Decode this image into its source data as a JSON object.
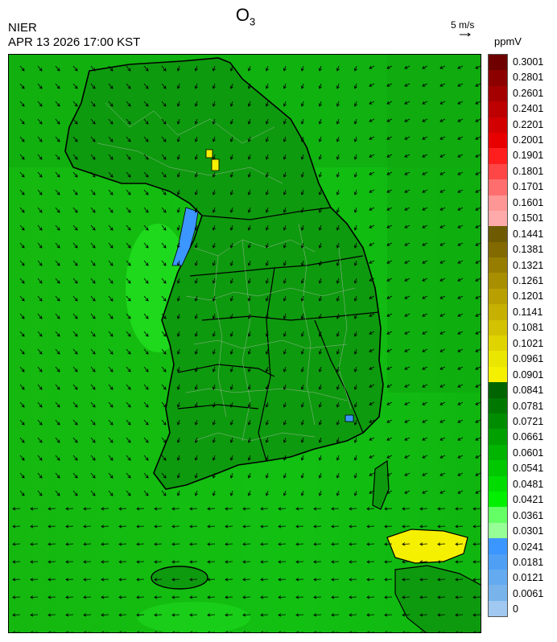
{
  "header": {
    "species": "O",
    "species_sub": "3",
    "org": "NIER",
    "timestamp": "APR 13 2026 17:00 KST",
    "wind_scale": "5 m/s",
    "unit": "ppmV"
  },
  "legend": {
    "labels": [
      "0.3001",
      "0.2801",
      "0.2601",
      "0.2401",
      "0.2201",
      "0.2001",
      "0.1901",
      "0.1801",
      "0.1701",
      "0.1601",
      "0.1501",
      "0.1441",
      "0.1381",
      "0.1321",
      "0.1261",
      "0.1201",
      "0.1141",
      "0.1081",
      "0.1021",
      "0.0961",
      "0.0901",
      "0.0841",
      "0.0781",
      "0.0721",
      "0.0661",
      "0.0601",
      "0.0541",
      "0.0481",
      "0.0421",
      "0.0361",
      "0.0301",
      "0.0241",
      "0.0181",
      "0.0121",
      "0.0061",
      "0"
    ],
    "colors": [
      "#6e0000",
      "#8c0000",
      "#a50000",
      "#bd0000",
      "#d20000",
      "#e80000",
      "#ff1e1e",
      "#ff4646",
      "#ff6e6e",
      "#ff9696",
      "#ffaaaa",
      "#6e5a00",
      "#826a00",
      "#967d00",
      "#a88f00",
      "#b9a000",
      "#c6b000",
      "#d2c200",
      "#e0d400",
      "#ebe600",
      "#f5f000",
      "#006400",
      "#007800",
      "#008c00",
      "#00a000",
      "#00b400",
      "#00c800",
      "#00dc00",
      "#00f000",
      "#64ff64",
      "#96ff96",
      "#3c96ff",
      "#4fa0f5",
      "#64aaf0",
      "#78b4eb",
      "#a0c8f0"
    ]
  }
}
